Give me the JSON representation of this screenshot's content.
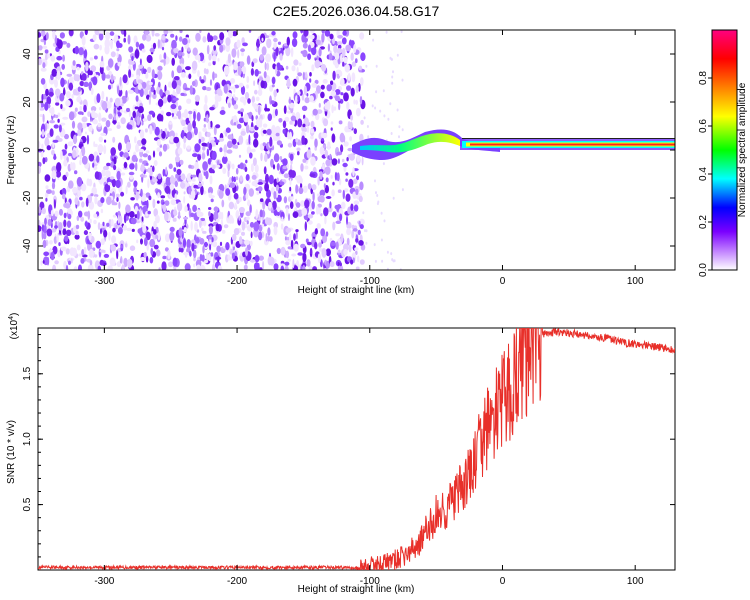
{
  "title": "C2E5.2026.036.04.58.G17",
  "chart_data": [
    {
      "type": "heatmap",
      "name": "spectrogram",
      "title": "C2E5.2026.036.04.58.G17",
      "xlabel": "Height of straight line (km)",
      "ylabel": "Frequency (Hz)",
      "xlim": [
        -350,
        130
      ],
      "ylim": [
        -50,
        50
      ],
      "xticks": [
        -300,
        -200,
        -100,
        0,
        100
      ],
      "yticks": [
        -40,
        -20,
        0,
        20,
        40
      ],
      "colorbar": {
        "label": "Normalized spectral amplitude",
        "range": [
          0,
          1
        ],
        "ticks": [
          "0.0",
          "0.2",
          "0.4",
          "0.6",
          "0.8"
        ],
        "colors": [
          "#ffffff",
          "#7a00ff",
          "#0000ff",
          "#00ffff",
          "#00ff00",
          "#ffff00",
          "#ff8000",
          "#ff0000",
          "#ff0080"
        ]
      },
      "regions": [
        {
          "x_range": [
            -350,
            -105
          ],
          "description": "broadband noise",
          "amplitude": 0.1
        },
        {
          "x_range": [
            -105,
            -30
          ],
          "description": "signal onset",
          "frequency_hz": [
            -3,
            8
          ],
          "amplitude": 0.4
        },
        {
          "x_range": [
            -30,
            130
          ],
          "description": "steady carrier line",
          "frequency_hz": 1.5,
          "amplitude": 0.95
        }
      ]
    },
    {
      "type": "line",
      "name": "snr",
      "xlabel": "Height of straight line (km)",
      "ylabel": "SNR (10 * v/v)",
      "y_multiplier": "(x10",
      "y_multiplier_exp": "4",
      "y_multiplier_close": ")",
      "xlim": [
        -350,
        130
      ],
      "ylim": [
        0,
        1.85
      ],
      "xticks": [
        -300,
        -200,
        -100,
        0,
        100
      ],
      "yticks": [
        "0.5",
        "1.0",
        "1.5"
      ],
      "line_color": "#e8302a",
      "series": [
        {
          "name": "SNR",
          "x": [
            -350,
            -300,
            -250,
            -200,
            -150,
            -110,
            -95,
            -80,
            -70,
            -60,
            -55,
            -50,
            -45,
            -40,
            -35,
            -30,
            -25,
            -20,
            -15,
            -10,
            -5,
            0,
            5,
            10,
            15,
            20,
            25,
            30,
            40,
            50,
            60,
            70,
            80,
            90,
            100,
            110,
            120,
            130
          ],
          "y": [
            0.02,
            0.02,
            0.02,
            0.02,
            0.02,
            0.02,
            0.04,
            0.08,
            0.13,
            0.25,
            0.33,
            0.42,
            0.45,
            0.5,
            0.56,
            0.62,
            0.72,
            0.85,
            1.0,
            1.1,
            1.2,
            1.28,
            1.35,
            1.48,
            1.58,
            1.66,
            1.73,
            1.8,
            1.82,
            1.81,
            1.8,
            1.78,
            1.77,
            1.74,
            1.73,
            1.71,
            1.7,
            1.68
          ]
        }
      ]
    }
  ]
}
